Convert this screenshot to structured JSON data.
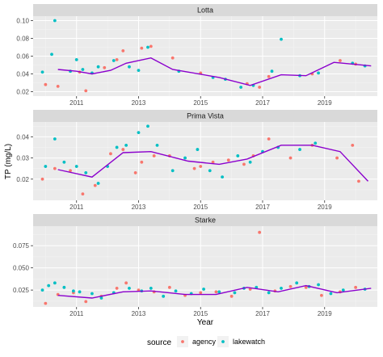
{
  "chart_data": {
    "type": "scatter",
    "xlabel": "Year",
    "ylabel": "TP (mg/L)",
    "x_ticks": [
      2011,
      2013,
      2015,
      2017,
      2019
    ],
    "xlim": [
      2009.6,
      2020.7
    ],
    "legend": {
      "title": "source",
      "placement": "bottom",
      "entries": [
        {
          "name": "agency",
          "color": "#f8766d"
        },
        {
          "name": "lakewatch",
          "color": "#00bfc4"
        }
      ]
    },
    "trend_line_color": "#8b00cd",
    "panels": [
      {
        "title": "Lotta",
        "ylim": [
          0.015,
          0.105
        ],
        "y_ticks": [
          0.02,
          0.04,
          0.06,
          0.08,
          0.1
        ],
        "y_tick_labels": [
          "0.02",
          "0.04",
          "0.06",
          "0.08",
          "0.10"
        ],
        "trend": [
          [
            2010.4,
            0.045
          ],
          [
            2011.0,
            0.043
          ],
          [
            2011.5,
            0.04
          ],
          [
            2012.1,
            0.044
          ],
          [
            2012.6,
            0.052
          ],
          [
            2013.4,
            0.058
          ],
          [
            2014.1,
            0.045
          ],
          [
            2015.6,
            0.036
          ],
          [
            2016.6,
            0.027
          ],
          [
            2017.6,
            0.039
          ],
          [
            2018.4,
            0.038
          ],
          [
            2019.3,
            0.053
          ],
          [
            2020.5,
            0.049
          ]
        ],
        "agency": [
          [
            2010.0,
            0.028
          ],
          [
            2010.4,
            0.026
          ],
          [
            2011.1,
            0.042
          ],
          [
            2011.3,
            0.021
          ],
          [
            2011.9,
            0.047
          ],
          [
            2012.3,
            0.056
          ],
          [
            2012.5,
            0.066
          ],
          [
            2013.1,
            0.069
          ],
          [
            2013.4,
            0.071
          ],
          [
            2014.1,
            0.058
          ],
          [
            2015.0,
            0.041
          ],
          [
            2016.5,
            0.029
          ],
          [
            2016.9,
            0.025
          ],
          [
            2017.2,
            0.037
          ],
          [
            2018.6,
            0.04
          ],
          [
            2019.5,
            0.055
          ],
          [
            2020.0,
            0.051
          ]
        ],
        "lakewatch": [
          [
            2009.9,
            0.042
          ],
          [
            2010.2,
            0.062
          ],
          [
            2010.3,
            0.1
          ],
          [
            2010.8,
            0.043
          ],
          [
            2011.0,
            0.056
          ],
          [
            2011.2,
            0.045
          ],
          [
            2011.5,
            0.041
          ],
          [
            2011.7,
            0.048
          ],
          [
            2012.2,
            0.055
          ],
          [
            2012.7,
            0.048
          ],
          [
            2013.0,
            0.044
          ],
          [
            2013.3,
            0.07
          ],
          [
            2014.3,
            0.043
          ],
          [
            2015.4,
            0.036
          ],
          [
            2015.8,
            0.034
          ],
          [
            2016.3,
            0.025
          ],
          [
            2016.7,
            0.027
          ],
          [
            2017.3,
            0.043
          ],
          [
            2017.6,
            0.079
          ],
          [
            2018.2,
            0.038
          ],
          [
            2018.8,
            0.041
          ],
          [
            2019.9,
            0.052
          ],
          [
            2020.3,
            0.049
          ]
        ]
      },
      {
        "title": "Prima Vista",
        "ylim": [
          0.01,
          0.047
        ],
        "y_ticks": [
          0.02,
          0.03,
          0.04
        ],
        "y_tick_labels": [
          "0.02",
          "0.03",
          "0.04"
        ],
        "trend": [
          [
            2010.4,
            0.0245
          ],
          [
            2011.5,
            0.021
          ],
          [
            2012.5,
            0.0325
          ],
          [
            2013.4,
            0.033
          ],
          [
            2014.6,
            0.0285
          ],
          [
            2015.6,
            0.027
          ],
          [
            2016.5,
            0.0295
          ],
          [
            2017.6,
            0.036
          ],
          [
            2018.6,
            0.036
          ],
          [
            2019.5,
            0.033
          ],
          [
            2020.4,
            0.019
          ]
        ],
        "agency": [
          [
            2009.9,
            0.02
          ],
          [
            2010.3,
            0.025
          ],
          [
            2010.8,
            0.024
          ],
          [
            2011.2,
            0.013
          ],
          [
            2011.6,
            0.017
          ],
          [
            2012.1,
            0.032
          ],
          [
            2012.5,
            0.034
          ],
          [
            2012.9,
            0.023
          ],
          [
            2013.1,
            0.028
          ],
          [
            2013.5,
            0.031
          ],
          [
            2014.0,
            0.031
          ],
          [
            2014.8,
            0.025
          ],
          [
            2015.0,
            0.026
          ],
          [
            2015.4,
            0.028
          ],
          [
            2015.9,
            0.029
          ],
          [
            2016.4,
            0.027
          ],
          [
            2016.7,
            0.031
          ],
          [
            2017.2,
            0.039
          ],
          [
            2017.9,
            0.03
          ],
          [
            2018.6,
            0.036
          ],
          [
            2019.4,
            0.03
          ],
          [
            2019.9,
            0.036
          ],
          [
            2020.1,
            0.019
          ]
        ],
        "lakewatch": [
          [
            2010.0,
            0.026
          ],
          [
            2010.3,
            0.039
          ],
          [
            2010.6,
            0.028
          ],
          [
            2011.0,
            0.026
          ],
          [
            2011.3,
            0.023
          ],
          [
            2011.7,
            0.018
          ],
          [
            2012.0,
            0.026
          ],
          [
            2012.3,
            0.035
          ],
          [
            2012.6,
            0.036
          ],
          [
            2013.0,
            0.042
          ],
          [
            2013.3,
            0.045
          ],
          [
            2013.6,
            0.036
          ],
          [
            2014.1,
            0.024
          ],
          [
            2014.5,
            0.03
          ],
          [
            2014.9,
            0.034
          ],
          [
            2015.3,
            0.024
          ],
          [
            2015.7,
            0.021
          ],
          [
            2016.2,
            0.031
          ],
          [
            2016.6,
            0.028
          ],
          [
            2017.0,
            0.033
          ],
          [
            2017.5,
            0.035
          ],
          [
            2018.2,
            0.034
          ],
          [
            2018.7,
            0.037
          ]
        ]
      },
      {
        "title": "Starke",
        "ylim": [
          0.006,
          0.097
        ],
        "y_ticks": [
          0.025,
          0.05,
          0.075
        ],
        "y_tick_labels": [
          "0.025",
          "0.050",
          "0.075"
        ],
        "trend": [
          [
            2010.4,
            0.019
          ],
          [
            2011.5,
            0.016
          ],
          [
            2012.5,
            0.023
          ],
          [
            2013.4,
            0.024
          ],
          [
            2014.5,
            0.02
          ],
          [
            2015.5,
            0.02
          ],
          [
            2016.5,
            0.028
          ],
          [
            2017.5,
            0.023
          ],
          [
            2018.4,
            0.03
          ],
          [
            2019.4,
            0.022
          ],
          [
            2020.5,
            0.027
          ]
        ],
        "agency": [
          [
            2010.0,
            0.01
          ],
          [
            2010.4,
            0.02
          ],
          [
            2010.9,
            0.022
          ],
          [
            2011.3,
            0.012
          ],
          [
            2011.8,
            0.018
          ],
          [
            2012.3,
            0.027
          ],
          [
            2012.6,
            0.033
          ],
          [
            2013.0,
            0.025
          ],
          [
            2013.5,
            0.023
          ],
          [
            2014.0,
            0.028
          ],
          [
            2014.5,
            0.019
          ],
          [
            2015.0,
            0.022
          ],
          [
            2015.5,
            0.023
          ],
          [
            2016.0,
            0.018
          ],
          [
            2016.6,
            0.026
          ],
          [
            2016.9,
            0.09
          ],
          [
            2017.4,
            0.024
          ],
          [
            2017.9,
            0.029
          ],
          [
            2018.4,
            0.028
          ],
          [
            2018.9,
            0.019
          ],
          [
            2019.5,
            0.023
          ],
          [
            2020.0,
            0.028
          ]
        ],
        "lakewatch": [
          [
            2009.9,
            0.025
          ],
          [
            2010.1,
            0.03
          ],
          [
            2010.3,
            0.033
          ],
          [
            2010.6,
            0.028
          ],
          [
            2010.9,
            0.024
          ],
          [
            2011.1,
            0.023
          ],
          [
            2011.5,
            0.021
          ],
          [
            2011.8,
            0.016
          ],
          [
            2012.2,
            0.022
          ],
          [
            2012.7,
            0.027
          ],
          [
            2013.1,
            0.024
          ],
          [
            2013.4,
            0.027
          ],
          [
            2013.8,
            0.018
          ],
          [
            2014.2,
            0.024
          ],
          [
            2014.7,
            0.021
          ],
          [
            2015.1,
            0.026
          ],
          [
            2015.6,
            0.023
          ],
          [
            2016.1,
            0.022
          ],
          [
            2016.4,
            0.027
          ],
          [
            2016.8,
            0.028
          ],
          [
            2017.2,
            0.022
          ],
          [
            2017.6,
            0.027
          ],
          [
            2018.1,
            0.033
          ],
          [
            2018.5,
            0.029
          ],
          [
            2018.8,
            0.031
          ],
          [
            2019.2,
            0.021
          ],
          [
            2019.6,
            0.025
          ],
          [
            2020.3,
            0.026
          ]
        ]
      }
    ]
  }
}
